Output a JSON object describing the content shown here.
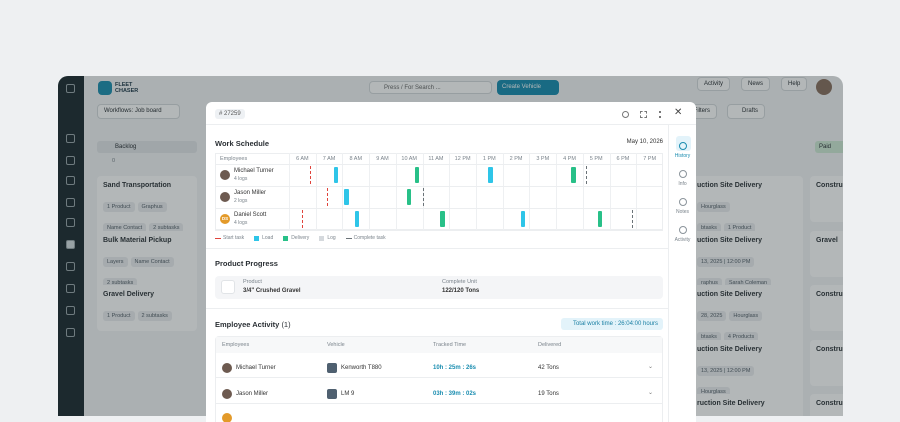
{
  "app": {
    "logo": [
      "FLEET",
      "CHASER"
    ],
    "search": "Press / For Search ...",
    "create_button": "Create Vehicle",
    "nav": [
      "Activity",
      "News",
      "Help"
    ],
    "workflow": "Workflows: Job board",
    "toolbar": [
      "Filters",
      "Drafts"
    ],
    "backlog": {
      "name": "Backlog",
      "count": "0",
      "cards": [
        {
          "title": "Sand Transportation",
          "tags": [
            [
              "1 Product",
              "Graphus"
            ],
            [
              "Name Contact",
              "2 subtasks"
            ]
          ]
        },
        {
          "title": "Bulk Material Pickup",
          "tags": [
            [
              "Layers",
              "Name Contact"
            ],
            [
              "2 subtasks"
            ]
          ]
        },
        {
          "title": "Gravel Delivery",
          "tags": [
            [
              "1 Product",
              "2 subtasks"
            ]
          ]
        }
      ]
    },
    "right_cards": [
      {
        "title": "uction Site Delivery",
        "tags": [
          [
            "Hourglass"
          ],
          [
            "btasks",
            "1 Product"
          ]
        ]
      },
      {
        "title": "uction Site Delivery",
        "tags": [
          [
            "13, 2025 | 12:00 PM"
          ],
          [
            "raphus",
            "Sarah Coleman"
          ],
          [
            "btasks",
            "4 Products"
          ]
        ]
      },
      {
        "title": "uction Site Delivery",
        "tags": [
          [
            "28, 2025",
            "Hourglass"
          ],
          [
            "btasks",
            "4 Products"
          ]
        ]
      },
      {
        "title": "uction Site Delivery",
        "tags": [
          [
            "13, 2025 | 12:00 PM"
          ],
          [
            "Hourglass"
          ],
          [
            "btasks",
            "1 Product"
          ]
        ]
      },
      {
        "title": "ruction Site Delivery",
        "tags": []
      }
    ],
    "paid_column": {
      "name": "Paid",
      "cards": [
        "Constru",
        "Gravel",
        "Constru",
        "Constru",
        "Constru"
      ]
    }
  },
  "modal": {
    "id": "# 27259",
    "rail": [
      "History",
      "Info",
      "Notes",
      "Activity"
    ],
    "schedule": {
      "title": "Work Schedule",
      "date": "May 10, 2026",
      "employees_header": "Employees",
      "hours": [
        "6 AM",
        "7 AM",
        "8 AM",
        "9 AM",
        "10 AM",
        "11 AM",
        "12 PM",
        "1 PM",
        "2 PM",
        "3 PM",
        "4 PM",
        "5 PM",
        "6 PM",
        "7 PM"
      ],
      "xlim": [
        6,
        20
      ],
      "colors": {
        "start": "#e0443c",
        "load": "#2ec5e8",
        "delivery": "#28c088",
        "log": "#d5d9dd",
        "complete": "#6b7378"
      },
      "rows": [
        {
          "name": "Michael Turner",
          "logs": "4 logs",
          "events": [
            {
              "type": "start",
              "time": 6.8
            },
            {
              "type": "load",
              "time": 7.75
            },
            {
              "type": "delivery",
              "time": 10.8
            },
            {
              "type": "load",
              "time": 13.55
            },
            {
              "type": "delivery",
              "time": 16.65
            },
            {
              "type": "complete",
              "time": 17.15
            }
          ]
        },
        {
          "name": "Jason Miller",
          "logs": "2 logs",
          "events": [
            {
              "type": "start",
              "time": 7.45
            },
            {
              "type": "load",
              "time": 8.15
            },
            {
              "type": "delivery",
              "time": 10.5
            },
            {
              "type": "complete",
              "time": 11.05
            }
          ]
        },
        {
          "name": "Daniel Scott",
          "initials": "DS",
          "logs": "4 logs",
          "events": [
            {
              "type": "start",
              "time": 6.5
            },
            {
              "type": "load",
              "time": 8.55
            },
            {
              "type": "delivery",
              "time": 11.75
            },
            {
              "type": "load",
              "time": 14.75
            },
            {
              "type": "delivery",
              "time": 17.65
            },
            {
              "type": "complete",
              "time": 18.85
            }
          ]
        }
      ],
      "legend": [
        {
          "type": "start",
          "label": "Start task"
        },
        {
          "type": "load",
          "label": "Load"
        },
        {
          "type": "delivery",
          "label": "Delivery"
        },
        {
          "type": "log",
          "label": "Log"
        },
        {
          "type": "complete",
          "label": "Complete task"
        }
      ]
    },
    "product": {
      "title": "Product Progress",
      "product_label": "Product",
      "product": "3/4\" Crushed Gravel",
      "unit_label": "Complete Unit",
      "unit": "122/120 Tons"
    },
    "activity": {
      "title": "Employee Activity",
      "count": "(1)",
      "total": "Total work time : 26:04:00 hours",
      "headers": [
        "Employees",
        "Vehicle",
        "Tracked Time",
        "Delivered"
      ],
      "rows": [
        [
          "Michael Turner",
          "Kenworth T880",
          "10h : 25m : 26s",
          "42 Tons"
        ],
        [
          "Jason Miller",
          "LM 9",
          "03h : 39m : 02s",
          "19 Tons"
        ]
      ]
    }
  }
}
